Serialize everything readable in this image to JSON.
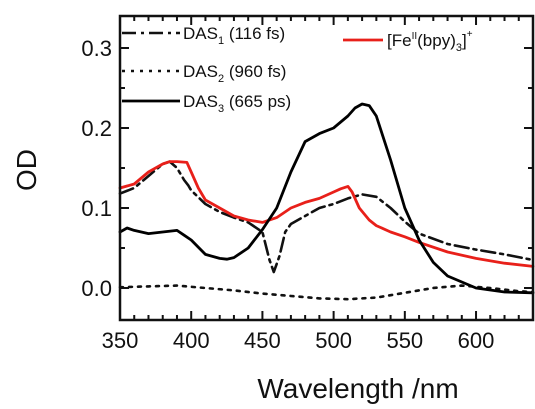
{
  "chart_data": {
    "type": "line",
    "xlabel": "Wavelength /nm",
    "ylabel": "OD",
    "xlim": [
      350,
      640
    ],
    "ylim": [
      -0.04,
      0.34
    ],
    "x_ticks": [
      350,
      400,
      450,
      500,
      550,
      600
    ],
    "x_tick_labels": [
      "350",
      "400",
      "450",
      "500",
      "550",
      "600"
    ],
    "y_ticks": [
      0.0,
      0.1,
      0.2,
      0.3
    ],
    "y_tick_labels": [
      "0.0",
      "0.1",
      "0.2",
      "0.3"
    ],
    "legend_position": "top",
    "series": [
      {
        "key": "das1",
        "name": "DAS",
        "subscript": "1",
        "suffix": " (116 fs)",
        "color": "#111111",
        "style": "dashdot",
        "x": [
          350,
          360,
          370,
          380,
          385,
          390,
          395,
          398,
          400,
          410,
          420,
          430,
          440,
          450,
          455,
          458,
          462,
          466,
          470,
          480,
          490,
          500,
          510,
          520,
          530,
          540,
          550,
          560,
          580,
          600,
          620,
          640
        ],
        "y": [
          0.118,
          0.125,
          0.14,
          0.155,
          0.158,
          0.15,
          0.135,
          0.128,
          0.122,
          0.105,
          0.095,
          0.088,
          0.082,
          0.07,
          0.035,
          0.02,
          0.04,
          0.07,
          0.08,
          0.09,
          0.1,
          0.105,
          0.112,
          0.117,
          0.114,
          0.1,
          0.083,
          0.068,
          0.055,
          0.048,
          0.042,
          0.035
        ]
      },
      {
        "key": "das2",
        "name": "DAS",
        "subscript": "2",
        "suffix": " (960 fs)",
        "color": "#111111",
        "style": "dotted",
        "x": [
          350,
          370,
          390,
          410,
          430,
          450,
          470,
          490,
          510,
          530,
          550,
          570,
          590,
          610,
          630,
          640
        ],
        "y": [
          0.001,
          0.002,
          0.003,
          0.0,
          -0.003,
          -0.007,
          -0.01,
          -0.013,
          -0.014,
          -0.012,
          -0.006,
          0.0,
          0.003,
          0.0,
          -0.004,
          -0.005
        ]
      },
      {
        "key": "das3",
        "name": "DAS",
        "subscript": "3",
        "suffix": " (665 ps)",
        "color": "#000000",
        "style": "solid",
        "x": [
          350,
          355,
          360,
          370,
          380,
          390,
          395,
          400,
          410,
          420,
          425,
          430,
          440,
          450,
          460,
          470,
          480,
          490,
          500,
          510,
          515,
          520,
          525,
          530,
          540,
          550,
          560,
          570,
          580,
          600,
          620,
          640
        ],
        "y": [
          0.07,
          0.075,
          0.072,
          0.068,
          0.07,
          0.072,
          0.066,
          0.06,
          0.042,
          0.037,
          0.036,
          0.038,
          0.05,
          0.073,
          0.1,
          0.145,
          0.183,
          0.193,
          0.2,
          0.215,
          0.225,
          0.23,
          0.228,
          0.215,
          0.16,
          0.1,
          0.06,
          0.032,
          0.015,
          0.0,
          -0.005,
          -0.006
        ]
      },
      {
        "key": "fe",
        "name": "[Fe",
        "superscript_1": "II",
        "middle": "(bpy)",
        "subscript": "3",
        "end": "]",
        "superscript_2": "+",
        "color": "#e8201a",
        "style": "solid",
        "x": [
          350,
          360,
          370,
          380,
          385,
          390,
          397,
          400,
          405,
          410,
          420,
          430,
          440,
          450,
          460,
          470,
          480,
          490,
          500,
          505,
          510,
          513,
          518,
          525,
          530,
          540,
          550,
          560,
          580,
          600,
          620,
          640
        ],
        "y": [
          0.125,
          0.13,
          0.145,
          0.155,
          0.158,
          0.158,
          0.157,
          0.145,
          0.125,
          0.11,
          0.1,
          0.09,
          0.085,
          0.082,
          0.088,
          0.1,
          0.107,
          0.112,
          0.12,
          0.124,
          0.127,
          0.12,
          0.1,
          0.085,
          0.078,
          0.07,
          0.064,
          0.057,
          0.045,
          0.037,
          0.031,
          0.027
        ]
      }
    ]
  }
}
